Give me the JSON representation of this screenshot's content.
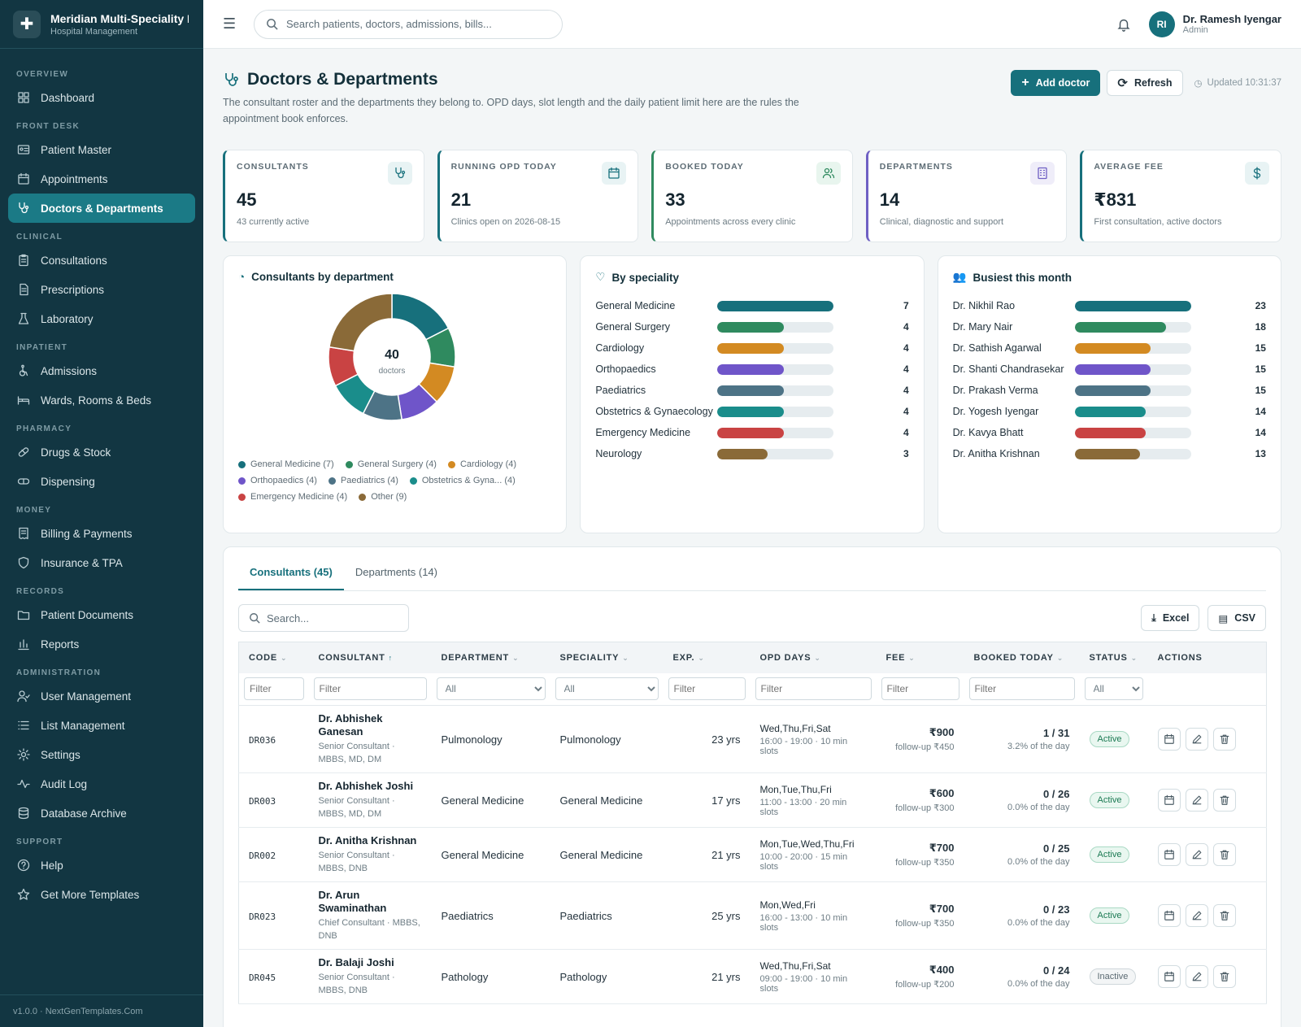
{
  "brand": {
    "name": "Meridian Multi-Speciality H",
    "sub": "Hospital Management"
  },
  "nav": [
    {
      "section": "OVERVIEW",
      "items": [
        {
          "label": "Dashboard",
          "icon": "dashboard-icon"
        }
      ]
    },
    {
      "section": "FRONT DESK",
      "items": [
        {
          "label": "Patient Master",
          "icon": "id-card-icon"
        },
        {
          "label": "Appointments",
          "icon": "calendar-icon"
        },
        {
          "label": "Doctors & Departments",
          "icon": "stethoscope-icon",
          "active": true
        }
      ]
    },
    {
      "section": "CLINICAL",
      "items": [
        {
          "label": "Consultations",
          "icon": "clipboard-icon"
        },
        {
          "label": "Prescriptions",
          "icon": "document-icon"
        },
        {
          "label": "Laboratory",
          "icon": "flask-icon"
        }
      ]
    },
    {
      "section": "INPATIENT",
      "items": [
        {
          "label": "Admissions",
          "icon": "wheelchair-icon"
        },
        {
          "label": "Wards, Rooms & Beds",
          "icon": "bed-icon"
        }
      ]
    },
    {
      "section": "PHARMACY",
      "items": [
        {
          "label": "Drugs & Stock",
          "icon": "pill-icon"
        },
        {
          "label": "Dispensing",
          "icon": "capsule-icon"
        }
      ]
    },
    {
      "section": "MONEY",
      "items": [
        {
          "label": "Billing & Payments",
          "icon": "receipt-icon"
        },
        {
          "label": "Insurance & TPA",
          "icon": "shield-icon"
        }
      ]
    },
    {
      "section": "RECORDS",
      "items": [
        {
          "label": "Patient Documents",
          "icon": "folder-icon"
        },
        {
          "label": "Reports",
          "icon": "bar-chart-icon"
        }
      ]
    },
    {
      "section": "ADMINISTRATION",
      "items": [
        {
          "label": "User Management",
          "icon": "user-icon"
        },
        {
          "label": "List Management",
          "icon": "list-icon"
        },
        {
          "label": "Settings",
          "icon": "gear-icon"
        },
        {
          "label": "Audit Log",
          "icon": "activity-icon"
        },
        {
          "label": "Database Archive",
          "icon": "database-icon"
        }
      ]
    },
    {
      "section": "SUPPORT",
      "items": [
        {
          "label": "Help",
          "icon": "help-icon"
        },
        {
          "label": "Get More Templates",
          "icon": "star-icon"
        }
      ]
    }
  ],
  "footer": "v1.0.0 · NextGenTemplates.Com",
  "topbar": {
    "search_placeholder": "Search patients, doctors, admissions, bills...",
    "user_initials": "RI",
    "user_name": "Dr. Ramesh Iyengar",
    "user_role": "Admin"
  },
  "page": {
    "title": "Doctors & Departments",
    "description": "The consultant roster and the departments they belong to. OPD days, slot length and the daily patient limit here are the rules the appointment book enforces.",
    "add_label": "Add doctor",
    "refresh_label": "Refresh",
    "updated": "Updated 10:31:37"
  },
  "kpis": [
    {
      "label": "CONSULTANTS",
      "value": "45",
      "sub": "43 currently active",
      "color": "#17707c",
      "icon": "stethoscope-icon"
    },
    {
      "label": "RUNNING OPD TODAY",
      "value": "21",
      "sub": "Clinics open on 2026-08-15",
      "color": "#17707c",
      "icon": "calendar-icon"
    },
    {
      "label": "BOOKED TODAY",
      "value": "33",
      "sub": "Appointments across every clinic",
      "color": "#2f8a5f",
      "icon": "users-icon"
    },
    {
      "label": "DEPARTMENTS",
      "value": "14",
      "sub": "Clinical, diagnostic and support",
      "color": "#6f60c4",
      "icon": "building-icon"
    },
    {
      "label": "AVERAGE FEE",
      "value": "₹831",
      "sub": "First consultation, active doctors",
      "color": "#17707c",
      "icon": "dollar-icon"
    }
  ],
  "donut": {
    "title": "Consultants by department",
    "total": "40",
    "total_label": "doctors",
    "slices": [
      {
        "label": "General Medicine (7)",
        "value": 7,
        "color": "#17707c"
      },
      {
        "label": "General Surgery (4)",
        "value": 4,
        "color": "#2f8a5f"
      },
      {
        "label": "Cardiology (4)",
        "value": 4,
        "color": "#d38a22"
      },
      {
        "label": "Orthopaedics (4)",
        "value": 4,
        "color": "#6f55c9"
      },
      {
        "label": "Paediatrics (4)",
        "value": 4,
        "color": "#4d7386"
      },
      {
        "label": "Obstetrics & Gyna... (4)",
        "value": 4,
        "color": "#1a8d8b"
      },
      {
        "label": "Emergency Medicine (4)",
        "value": 4,
        "color": "#c94343"
      },
      {
        "label": "Other (9)",
        "value": 9,
        "color": "#8a6a38"
      }
    ]
  },
  "speciality": {
    "title": "By speciality",
    "max": 7,
    "rows": [
      {
        "label": "General Medicine",
        "value": 7,
        "color": "#17707c"
      },
      {
        "label": "General Surgery",
        "value": 4,
        "color": "#2f8a5f"
      },
      {
        "label": "Cardiology",
        "value": 4,
        "color": "#d38a22"
      },
      {
        "label": "Orthopaedics",
        "value": 4,
        "color": "#6f55c9"
      },
      {
        "label": "Paediatrics",
        "value": 4,
        "color": "#4d7386"
      },
      {
        "label": "Obstetrics & Gynaecology",
        "value": 4,
        "color": "#1a8d8b"
      },
      {
        "label": "Emergency Medicine",
        "value": 4,
        "color": "#c94343"
      },
      {
        "label": "Neurology",
        "value": 3,
        "color": "#8a6a38"
      }
    ]
  },
  "busiest": {
    "title": "Busiest this month",
    "max": 23,
    "rows": [
      {
        "label": "Dr. Nikhil Rao",
        "value": 23,
        "color": "#17707c"
      },
      {
        "label": "Dr. Mary Nair",
        "value": 18,
        "color": "#2f8a5f"
      },
      {
        "label": "Dr. Sathish Agarwal",
        "value": 15,
        "color": "#d38a22"
      },
      {
        "label": "Dr. Shanti Chandrasekar",
        "value": 15,
        "color": "#6f55c9"
      },
      {
        "label": "Dr. Prakash Verma",
        "value": 15,
        "color": "#4d7386"
      },
      {
        "label": "Dr. Yogesh Iyengar",
        "value": 14,
        "color": "#1a8d8b"
      },
      {
        "label": "Dr. Kavya Bhatt",
        "value": 14,
        "color": "#c94343"
      },
      {
        "label": "Dr. Anitha Krishnan",
        "value": 13,
        "color": "#8a6a38"
      }
    ]
  },
  "table": {
    "tabs": [
      "Consultants (45)",
      "Departments (14)"
    ],
    "search_placeholder": "Search...",
    "excel_label": "Excel",
    "csv_label": "CSV",
    "columns": [
      "CODE",
      "CONSULTANT",
      "DEPARTMENT",
      "SPECIALITY",
      "EXP.",
      "OPD DAYS",
      "FEE",
      "BOOKED TODAY",
      "STATUS",
      "ACTIONS"
    ],
    "filter_placeholder": "Filter",
    "select_all": "All",
    "rows": [
      {
        "code": "DR036",
        "name": "Dr. Abhishek Ganesan",
        "qual": "Senior Consultant · MBBS, MD, DM",
        "dept": "Pulmonology",
        "spec": "Pulmonology",
        "exp": "23 yrs",
        "days": "Wed,Thu,Fri,Sat",
        "slots": "16:00 - 19:00 · 10 min slots",
        "fee": "₹900",
        "follow": "follow-up ₹450",
        "booked": "1 / 31",
        "pct": "3.2% of the day",
        "status": "Active"
      },
      {
        "code": "DR003",
        "name": "Dr. Abhishek Joshi",
        "qual": "Senior Consultant · MBBS, MD, DM",
        "dept": "General Medicine",
        "spec": "General Medicine",
        "exp": "17 yrs",
        "days": "Mon,Tue,Thu,Fri",
        "slots": "11:00 - 13:00 · 20 min slots",
        "fee": "₹600",
        "follow": "follow-up ₹300",
        "booked": "0 / 26",
        "pct": "0.0% of the day",
        "status": "Active"
      },
      {
        "code": "DR002",
        "name": "Dr. Anitha Krishnan",
        "qual": "Senior Consultant · MBBS, DNB",
        "dept": "General Medicine",
        "spec": "General Medicine",
        "exp": "21 yrs",
        "days": "Mon,Tue,Wed,Thu,Fri",
        "slots": "10:00 - 20:00 · 15 min slots",
        "fee": "₹700",
        "follow": "follow-up ₹350",
        "booked": "0 / 25",
        "pct": "0.0% of the day",
        "status": "Active"
      },
      {
        "code": "DR023",
        "name": "Dr. Arun Swaminathan",
        "qual": "Chief Consultant · MBBS, DNB",
        "dept": "Paediatrics",
        "spec": "Paediatrics",
        "exp": "25 yrs",
        "days": "Mon,Wed,Fri",
        "slots": "16:00 - 13:00 · 10 min slots",
        "fee": "₹700",
        "follow": "follow-up ₹350",
        "booked": "0 / 23",
        "pct": "0.0% of the day",
        "status": "Active"
      },
      {
        "code": "DR045",
        "name": "Dr. Balaji Joshi",
        "qual": "Senior Consultant · MBBS, DNB",
        "dept": "Pathology",
        "spec": "Pathology",
        "exp": "21 yrs",
        "days": "Wed,Thu,Fri,Sat",
        "slots": "09:00 - 19:00 · 10 min slots",
        "fee": "₹400",
        "follow": "follow-up ₹200",
        "booked": "0 / 24",
        "pct": "0.0% of the day",
        "status": "Inactive"
      }
    ]
  }
}
